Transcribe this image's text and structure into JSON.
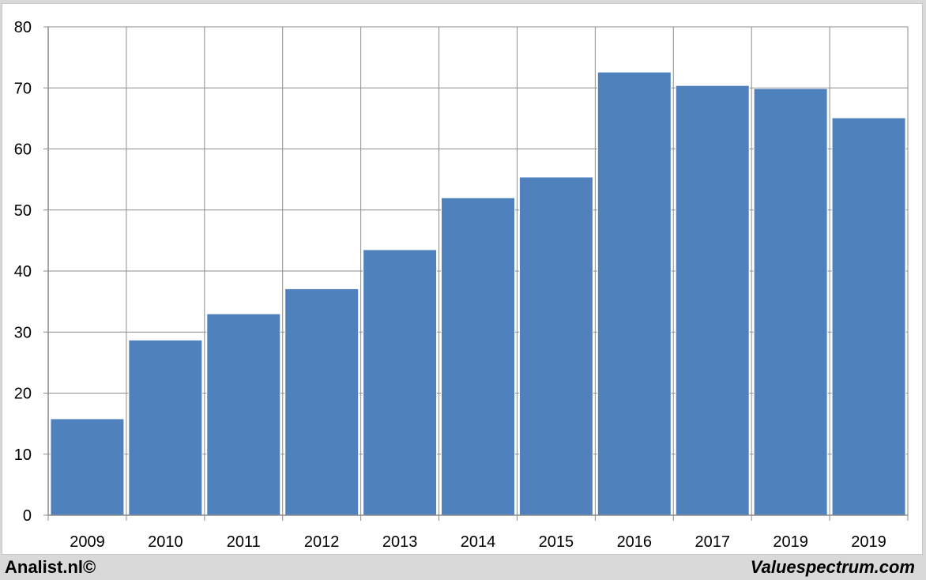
{
  "chart_data": {
    "type": "bar",
    "categories": [
      "2009",
      "2010",
      "2011",
      "2012",
      "2013",
      "2014",
      "2015",
      "2016",
      "2017",
      "2019",
      "2019"
    ],
    "values": [
      15.8,
      28.7,
      33.0,
      37.1,
      43.5,
      52.0,
      55.4,
      72.6,
      70.4,
      69.9,
      65.1
    ],
    "ylim": [
      0,
      80
    ],
    "yticks": [
      0,
      10,
      20,
      30,
      40,
      50,
      60,
      70,
      80
    ],
    "grid": true,
    "bar_color": "#4f81bd"
  },
  "footer": {
    "left": "Analist.nl©",
    "right": "Valuespectrum.com"
  }
}
